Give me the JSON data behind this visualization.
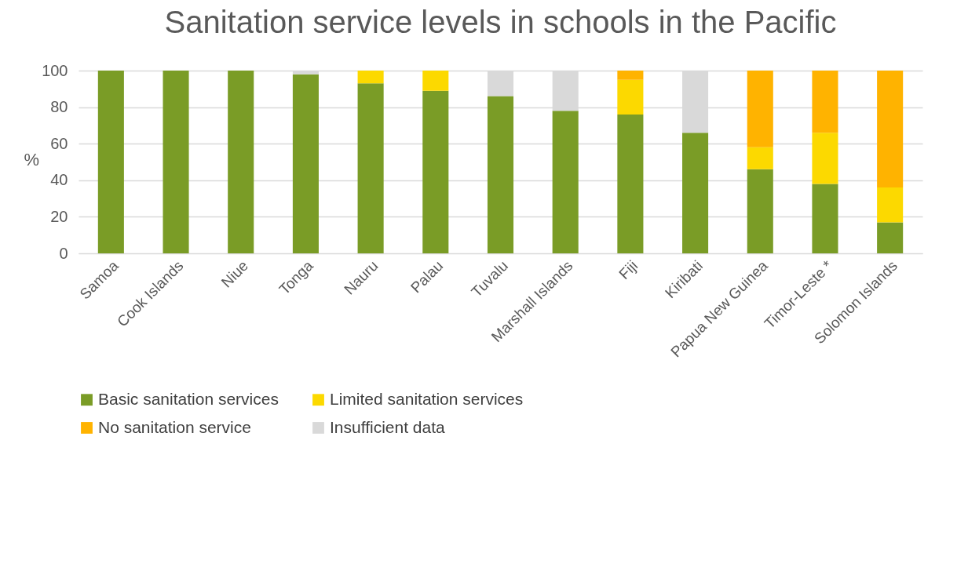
{
  "chart_data": {
    "type": "bar",
    "title": "Sanitation service levels in schools in the Pacific",
    "ylabel": "%",
    "stacked": true,
    "categories": [
      "Samoa",
      "Cook Islands",
      "Niue",
      "Tonga",
      "Nauru",
      "Palau",
      "Tuvalu",
      "Marshall Islands",
      "Fiji",
      "Kiribati",
      "Papua New Guinea",
      "Timor-Leste *",
      "Solomon Islands"
    ],
    "series": [
      {
        "name": "Basic sanitation services",
        "color": "#7a9c26",
        "values": [
          100,
          100,
          100,
          98,
          93,
          89,
          86,
          78,
          76,
          66,
          46,
          38,
          17
        ]
      },
      {
        "name": "Limited sanitation services",
        "color": "#fcd900",
        "values": [
          0,
          0,
          0,
          0,
          7,
          11,
          0,
          0,
          19,
          0,
          12,
          28,
          19
        ]
      },
      {
        "name": "No sanitation service",
        "color": "#ffb300",
        "values": [
          0,
          0,
          0,
          0,
          0,
          0,
          0,
          0,
          5,
          0,
          42,
          34,
          64
        ]
      },
      {
        "name": "Insufficient data",
        "color": "#d9d9d9",
        "values": [
          0,
          0,
          0,
          2,
          0,
          0,
          14,
          22,
          0,
          34,
          0,
          0,
          0
        ]
      }
    ],
    "ylim": [
      0,
      100
    ],
    "yticks": [
      0,
      20,
      40,
      60,
      80,
      100
    ],
    "grid": "y",
    "legend": "bottom"
  }
}
